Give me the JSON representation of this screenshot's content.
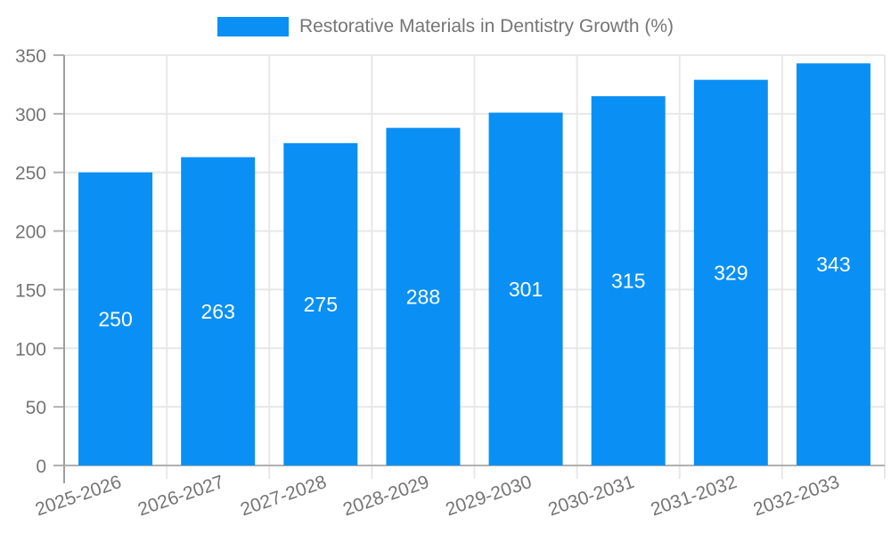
{
  "colors": {
    "bar": "#0a90f4",
    "grid": "#e8e8e8",
    "axis": "#b0b0b0",
    "axis_dark": "#9e9e9e",
    "tick_text": "#757575",
    "legend_text": "#757575",
    "bar_label": "#ffffff"
  },
  "legend": {
    "series_label": "Restorative Materials in Dentistry Growth (%)"
  },
  "chart_data": {
    "type": "bar",
    "title": "Restorative Materials in Dentistry Growth (%)",
    "categories": [
      "2025-2026",
      "2026-2027",
      "2027-2028",
      "2028-2029",
      "2029-2030",
      "2030-2031",
      "2031-2032",
      "2032-2033"
    ],
    "values": [
      250,
      263,
      275,
      288,
      301,
      315,
      329,
      343
    ],
    "xlabel": "",
    "ylabel": "",
    "ylim": [
      0,
      350
    ],
    "yticks": [
      0,
      50,
      100,
      150,
      200,
      250,
      300,
      350
    ],
    "grid": true,
    "legend_position": "top-center",
    "value_labels": "inside-center",
    "x_label_rotation_deg": -19
  }
}
